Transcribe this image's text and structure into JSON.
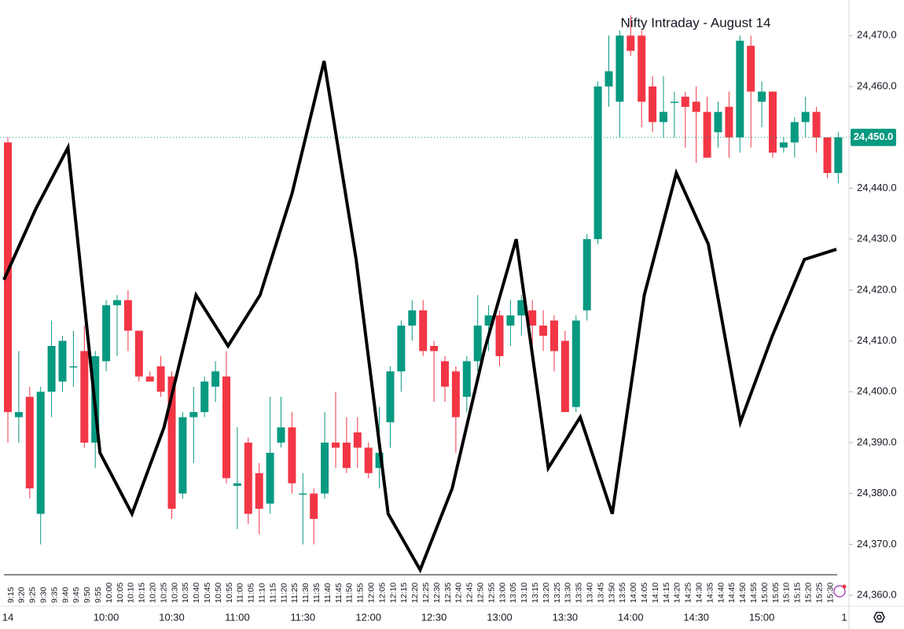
{
  "chart_data": [
    {
      "type": "candlestick",
      "title": "Nifty Intraday - August 14",
      "categories": [
        "9:15",
        "9:20",
        "9:25",
        "9:30",
        "9:35",
        "9:40",
        "9:45",
        "9:50",
        "9:55",
        "10:00",
        "10:05",
        "10:10",
        "10:15",
        "10:20",
        "10:25",
        "10:30",
        "10:35",
        "10:40",
        "10:45",
        "10:50",
        "10:55",
        "11:00",
        "11:05",
        "11:10",
        "11:15",
        "11:20",
        "11:25",
        "11:30",
        "11:35",
        "11:40",
        "11:45",
        "11:50",
        "11:55",
        "12:00",
        "12:05",
        "12:10",
        "12:15",
        "12:20",
        "12:25",
        "12:30",
        "12:35",
        "12:40",
        "12:45",
        "12:50",
        "12:55",
        "13:00",
        "13:05",
        "13:10",
        "13:15",
        "13:20",
        "13:25",
        "13:30",
        "13:35",
        "13:40",
        "13:45",
        "13:50",
        "13:55",
        "14:00",
        "14:05",
        "14:10",
        "14:15",
        "14:20",
        "14:25",
        "14:30",
        "14:35",
        "14:40",
        "14:45",
        "14:50",
        "14:55",
        "15:00",
        "15:05",
        "15:10",
        "15:15",
        "15:20",
        "15:25",
        "15:30",
        null
      ],
      "open": [
        24449,
        24395,
        24399,
        24376,
        24400,
        24402,
        24405,
        24408,
        24390,
        24406,
        24417,
        24418,
        24412,
        24403,
        24405,
        24403,
        24380,
        24395,
        24396,
        24401,
        24403,
        24381.5,
        24390,
        24384,
        24378,
        24390,
        24393,
        24380,
        24380,
        24380,
        24390,
        24390,
        24392,
        24389,
        24385,
        24394,
        24404,
        24413,
        24416,
        24409,
        24406,
        24404,
        24399,
        24406,
        24413,
        24415,
        24413,
        24415,
        24416,
        24413,
        24414,
        24410,
        24397,
        24416,
        24430,
        24460,
        24457,
        24470,
        24470,
        24460,
        24453,
        24457,
        24458,
        24457,
        24455,
        24451,
        24456,
        24450,
        24468,
        24457,
        24459,
        24448,
        24449,
        24453,
        24455,
        24450,
        24443
      ],
      "high": [
        24450,
        24408,
        24401,
        24401,
        24414,
        24411,
        24412,
        24413,
        24408,
        24418,
        24419,
        24420,
        24412,
        24404,
        24407,
        24404,
        24396,
        24401,
        24403,
        24406,
        24408,
        24393,
        24391,
        24386,
        24399,
        24399,
        24396,
        24384,
        24381,
        24396,
        24400,
        24395,
        24395,
        24390,
        24397,
        24405,
        24414,
        24418,
        24418,
        24410,
        24407,
        24405,
        24407,
        24419,
        24417,
        24416,
        24418,
        24419,
        24418,
        24416,
        24415,
        24412,
        24415,
        24431,
        24461,
        24470,
        24471,
        24474,
        24471,
        24462,
        24462,
        24459,
        24459,
        24460,
        24458,
        24457,
        24459,
        24470,
        24470,
        24461,
        24459,
        24450,
        24454,
        24458,
        24456,
        24450,
        24451
      ],
      "low": [
        24390,
        24390,
        24379,
        24370,
        24395,
        24400,
        24401,
        24389,
        24385,
        24404,
        24407,
        24408,
        24402,
        24402,
        24399,
        24375,
        24379,
        24386,
        24395,
        24398,
        24382,
        24373,
        24374,
        24372,
        24376,
        24389,
        24380,
        24370,
        24370,
        24379,
        24385,
        24384,
        24385,
        24383,
        24381,
        24389,
        24400,
        24410,
        24407,
        24398,
        24398,
        24388,
        24396,
        24404,
        24408,
        24405,
        24409,
        24411,
        24409,
        24408,
        24404,
        24396,
        24396,
        24414,
        24429,
        24456,
        24450,
        24466,
        24452,
        24451,
        24450,
        24450,
        24448,
        24445,
        24446,
        24448,
        24446,
        24447,
        24448,
        24452,
        24446,
        24447,
        24446,
        24450,
        24447,
        24442,
        24441
      ],
      "close": [
        24396,
        24396,
        24381,
        24400,
        24409,
        24410,
        24405,
        24390,
        24407,
        24417,
        24418,
        24412,
        24403,
        24402,
        24400,
        24377,
        24395,
        24396,
        24402,
        24404,
        24383,
        24382,
        24376,
        24377,
        24388,
        24393,
        24382,
        24380,
        24375,
        24390,
        24389,
        24385,
        24389,
        24384,
        24388,
        24404,
        24413,
        24416,
        24408,
        24408,
        24401,
        24395,
        24406,
        24413,
        24415,
        24407,
        24415,
        24418,
        24413,
        24411,
        24408,
        24396,
        24414,
        24430,
        24460,
        24463,
        24470,
        24467,
        24457,
        24453,
        24455,
        24457,
        24456,
        24455,
        24446,
        24455,
        24450,
        24469,
        24459,
        24459,
        24447,
        24449,
        24453,
        24455,
        24450,
        24443,
        24450
      ],
      "up_color": "#089981",
      "down_color": "#f23645",
      "ylim": [
        24358,
        24477
      ],
      "yticks": [
        {
          "value": 24360,
          "label": "24,360.0"
        },
        {
          "value": 24370,
          "label": "24,370.0"
        },
        {
          "value": 24380,
          "label": "24,380.0"
        },
        {
          "value": 24390,
          "label": "24,390.0"
        },
        {
          "value": 24400,
          "label": "24,400.0"
        },
        {
          "value": 24410,
          "label": "24,410.0"
        },
        {
          "value": 24420,
          "label": "24,420.0"
        },
        {
          "value": 24430,
          "label": "24,430.0"
        },
        {
          "value": 24440,
          "label": "24,440.0"
        },
        {
          "value": 24450,
          "label": "24,450.0"
        },
        {
          "value": 24460,
          "label": "24,460.0"
        },
        {
          "value": 24470,
          "label": "24,470.0"
        }
      ],
      "last_price": {
        "value": 24450,
        "label": "24,450.0"
      },
      "time_labels": [
        "14",
        "10:00",
        "10:30",
        "11:00",
        "11:30",
        "12:00",
        "12:30",
        "13:00",
        "13:30",
        "14:00",
        "14:30",
        "15:00",
        "1"
      ]
    },
    {
      "type": "line",
      "color": "#000000",
      "values": [
        24422,
        24436,
        24448,
        24388,
        24376,
        24393,
        24419,
        24409,
        24419,
        24439,
        24465,
        24426,
        24376,
        24365,
        24381,
        24408,
        24430,
        24385,
        24395,
        24376,
        24419,
        24443,
        24429,
        24394,
        24411,
        24426,
        24428
      ],
      "ylim": [
        24358,
        24477
      ]
    }
  ]
}
